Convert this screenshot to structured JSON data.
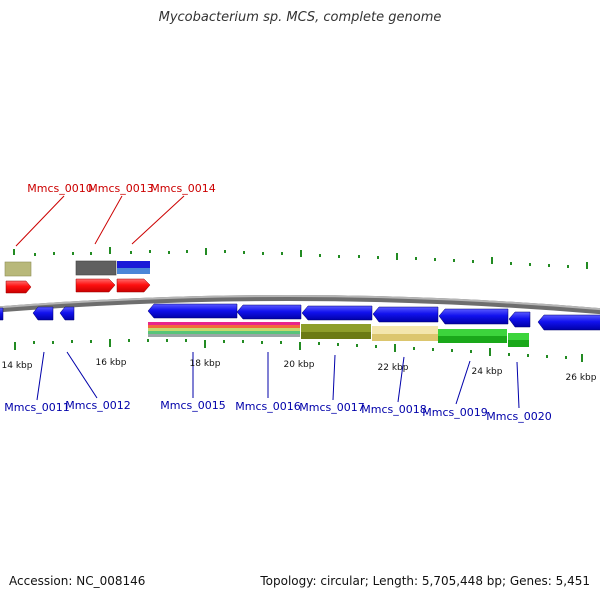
{
  "title": "Mycobacterium sp. MCS, complete genome",
  "footer": {
    "accession": "Accession: NC_008146",
    "summary": "Topology: circular; Length: 5,705,448 bp; Genes: 5,451"
  },
  "colors": {
    "forward_label": "#cc0000",
    "reverse_label": "#0000aa",
    "forward_cds": "#ff0000",
    "reverse_cds": "#0000ee",
    "backbone": "#888888",
    "tick": "#228b22",
    "callout_forward": "#cc0000",
    "callout_reverse": "#0000aa"
  },
  "scale_labels": [
    "14 kbp",
    "16 kbp",
    "18 kbp",
    "20 kbp",
    "22 kbp",
    "24 kbp",
    "26 kbp"
  ],
  "forward_gene_labels": [
    "Mmcs_0010",
    "Mmcs_0013",
    "Mmcs_0014"
  ],
  "reverse_gene_labels": [
    "Mmcs_0011",
    "Mmcs_0012",
    "Mmcs_0015",
    "Mmcs_0016",
    "Mmcs_0017",
    "Mmcs_0018",
    "Mmcs_0019",
    "Mmcs_0020"
  ]
}
